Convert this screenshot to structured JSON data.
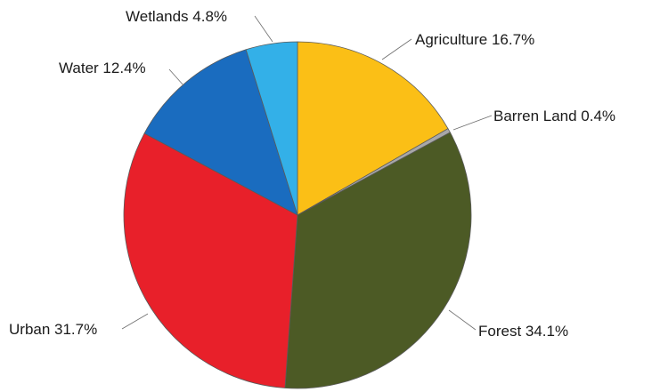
{
  "chart_data": {
    "type": "pie",
    "title": "",
    "start": "12 o'clock, clockwise",
    "slices": [
      {
        "label": "Agriculture 16.7%",
        "value": 16.7,
        "color": "#fbbf16"
      },
      {
        "label": "Barren Land 0.4%",
        "value": 0.4,
        "color": "#a8a8a8"
      },
      {
        "label": "Forest 34.1%",
        "value": 34.1,
        "color": "#4c5a25"
      },
      {
        "label": "Urban 31.7%",
        "value": 31.7,
        "color": "#e8202a"
      },
      {
        "label": "Water 12.4%",
        "value": 12.4,
        "color": "#1a6cbf"
      },
      {
        "label": "Wetlands 4.8%",
        "value": 4.8,
        "color": "#33b0e8"
      }
    ]
  }
}
